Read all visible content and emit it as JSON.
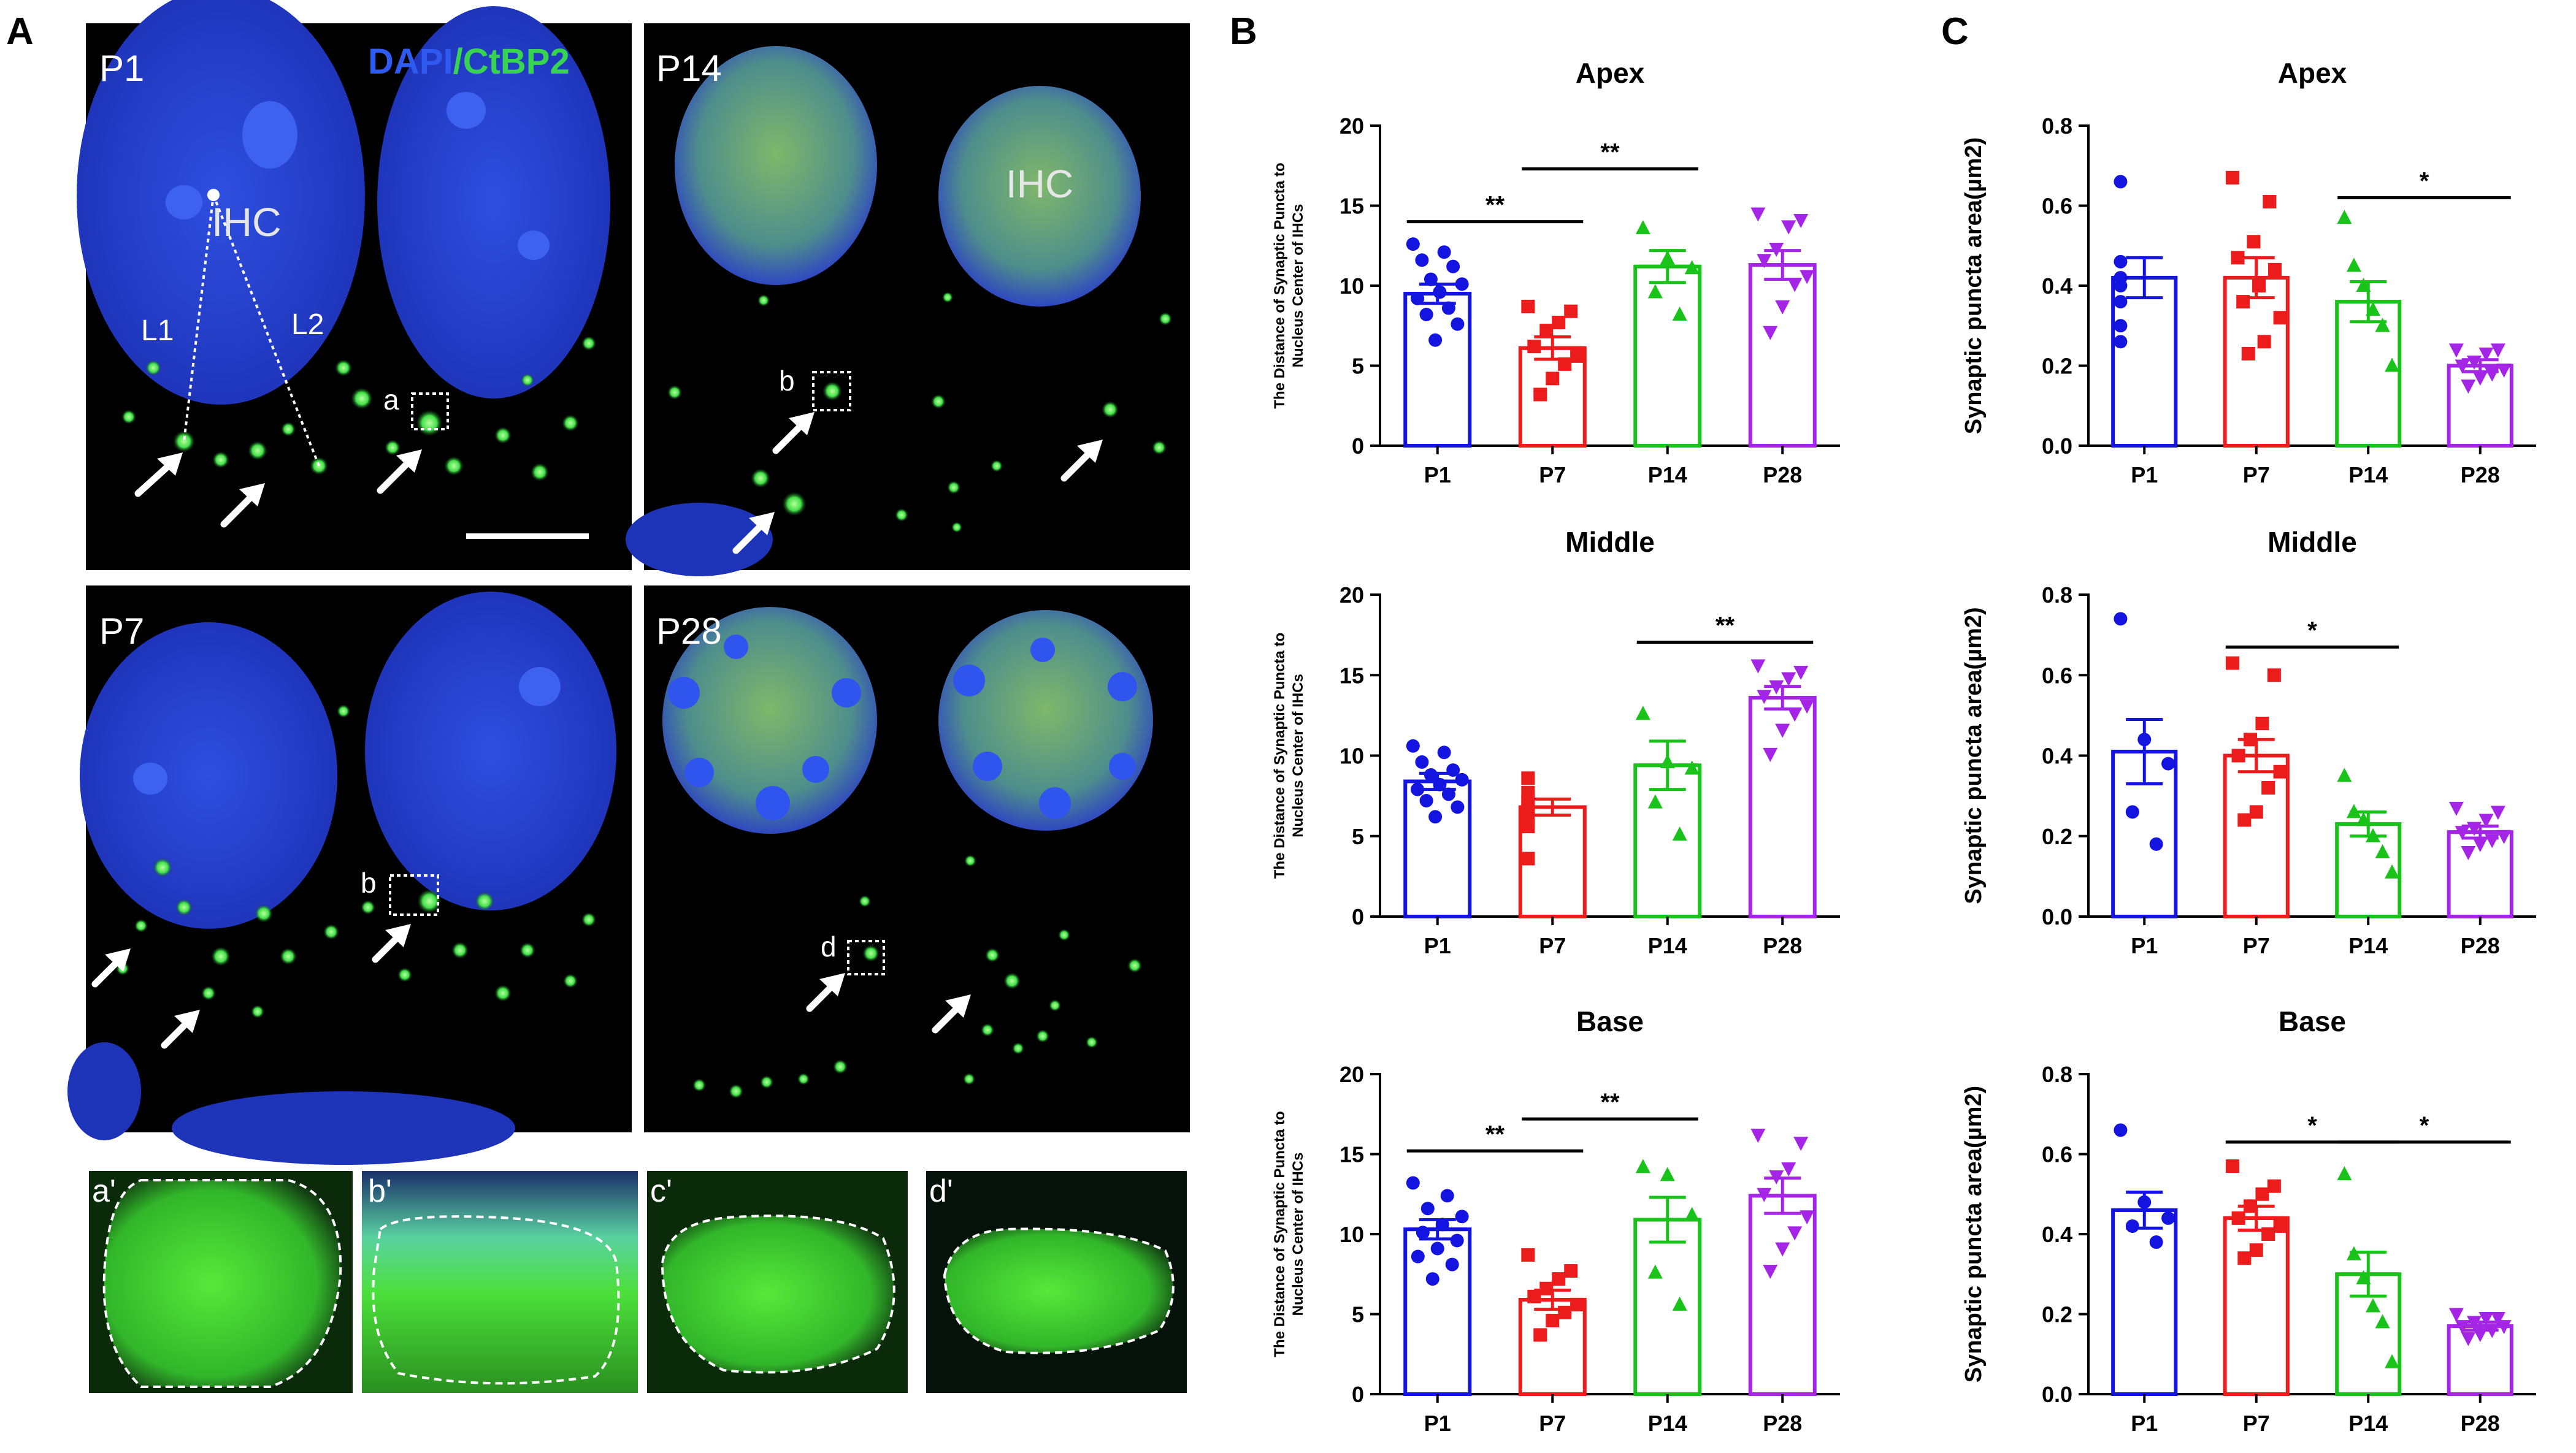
{
  "panel_letters": {
    "A": "A",
    "B": "B",
    "C": "C"
  },
  "micrographs": {
    "channels": {
      "dapi": "DAPI",
      "sep": "/",
      "ctbp2": "CtBP2"
    },
    "tiles": [
      {
        "label": "P1",
        "ihc_label": "IHC",
        "line_labels": [
          "L1",
          "L2"
        ],
        "box_label": "a",
        "scale_bar": true
      },
      {
        "label": "P14",
        "ihc_label": "IHC",
        "box_label": "b"
      },
      {
        "label": "P7",
        "box_label": "b"
      },
      {
        "label": "P28",
        "box_label": "d"
      }
    ],
    "insets": [
      "a'",
      "b'",
      "c'",
      "d'"
    ],
    "colors": {
      "dapi": "#2a4bd7",
      "ctbp2": "#39d353",
      "background": "#000000"
    }
  },
  "colors": {
    "P1": "#1414e0",
    "P7": "#ec1c1c",
    "P14": "#19c319",
    "P28": "#a425e6"
  },
  "chart_data": [
    {
      "type": "bar",
      "panel": "B",
      "title": "Apex",
      "ylabel": "The Distance of Synaptic Puncta to Nucleus Center of IHCs",
      "categories": [
        "P1",
        "P7",
        "P14",
        "P28"
      ],
      "ylim": [
        0,
        20
      ],
      "yticks": [
        "0",
        "5",
        "10",
        "15",
        "20"
      ],
      "values": [
        9.5,
        6.1,
        11.2,
        11.3
      ],
      "errors": [
        0.6,
        0.7,
        1.0,
        0.9
      ],
      "points": [
        [
          12.6,
          12.1,
          11.6,
          11.2,
          10.4,
          10.1,
          9.6,
          9.2,
          8.6,
          8.2,
          7.6,
          6.6
        ],
        [
          8.7,
          8.4,
          7.7,
          7.2,
          6.2,
          5.6,
          5.1,
          4.2,
          3.2
        ],
        [
          13.6,
          11.7,
          11.1,
          9.6,
          8.2
        ],
        [
          14.5,
          14.1,
          13.7,
          12.3,
          11.6,
          10.6,
          10.1,
          8.7,
          7.1
        ]
      ],
      "markers": [
        "circle",
        "square",
        "triangle",
        "triangle-down"
      ],
      "significance": [
        {
          "from": "P1",
          "to": "P7",
          "label": "**"
        },
        {
          "from": "P7",
          "to": "P14",
          "label": "**"
        }
      ]
    },
    {
      "type": "bar",
      "panel": "B",
      "title": "Middle",
      "ylabel": "The Distance of Synaptic Puncta to Nucleus Center of IHCs",
      "categories": [
        "P1",
        "P7",
        "P14",
        "P28"
      ],
      "ylim": [
        0,
        20
      ],
      "yticks": [
        "0",
        "5",
        "10",
        "15",
        "20"
      ],
      "values": [
        8.4,
        6.8,
        9.4,
        13.6
      ],
      "errors": [
        0.5,
        0.5,
        1.5,
        0.7
      ],
      "points": [
        [
          10.6,
          10.2,
          9.6,
          9.1,
          8.8,
          8.5,
          8.2,
          7.9,
          7.6,
          7.2,
          6.8,
          6.2
        ],
        [
          8.6,
          7.7,
          7.1,
          6.8,
          6.3,
          5.6,
          3.6
        ],
        [
          12.6,
          9.6,
          9.2,
          7.1,
          5.1
        ],
        [
          15.6,
          15.2,
          14.8,
          14.3,
          13.7,
          13.1,
          12.6,
          11.6,
          10.1
        ]
      ],
      "markers": [
        "circle",
        "square",
        "triangle",
        "triangle-down"
      ],
      "significance": [
        {
          "from": "P14",
          "to": "P28",
          "label": "**"
        }
      ]
    },
    {
      "type": "bar",
      "panel": "B",
      "title": "Base",
      "ylabel": "The Distance of Synaptic Puncta to Nucleus Center of IHCs",
      "categories": [
        "P1",
        "P7",
        "P14",
        "P28"
      ],
      "ylim": [
        0,
        20
      ],
      "yticks": [
        "0",
        "5",
        "10",
        "15",
        "20"
      ],
      "values": [
        10.3,
        5.9,
        10.9,
        12.4
      ],
      "errors": [
        0.6,
        0.6,
        1.4,
        1.1
      ],
      "points": [
        [
          13.2,
          12.4,
          11.6,
          11.1,
          10.6,
          10.1,
          9.6,
          9.1,
          8.6,
          8.1,
          7.2
        ],
        [
          8.7,
          7.7,
          7.2,
          6.6,
          6.1,
          5.6,
          5.1,
          4.6,
          3.7
        ],
        [
          14.2,
          13.7,
          11.2,
          7.6,
          5.6
        ],
        [
          16.2,
          15.7,
          14.1,
          13.6,
          12.5,
          11.1,
          10.1,
          9.1,
          7.7
        ]
      ],
      "markers": [
        "circle",
        "square",
        "triangle",
        "triangle-down"
      ],
      "significance": [
        {
          "from": "P1",
          "to": "P7",
          "label": "**"
        },
        {
          "from": "P7",
          "to": "P14",
          "label": "**"
        }
      ]
    },
    {
      "type": "bar",
      "panel": "C",
      "title": "Apex",
      "ylabel": "Synaptic puncta area(µm2)",
      "categories": [
        "P1",
        "P7",
        "P14",
        "P28"
      ],
      "ylim": [
        0,
        0.8
      ],
      "yticks": [
        "0.0",
        "0.2",
        "0.4",
        "0.6",
        "0.8"
      ],
      "values": [
        0.42,
        0.42,
        0.36,
        0.2
      ],
      "errors": [
        0.05,
        0.05,
        0.05,
        0.015
      ],
      "points": [
        [
          0.66,
          0.46,
          0.42,
          0.4,
          0.36,
          0.3,
          0.26
        ],
        [
          0.67,
          0.61,
          0.51,
          0.47,
          0.44,
          0.4,
          0.36,
          0.32,
          0.26,
          0.23
        ],
        [
          0.57,
          0.45,
          0.4,
          0.34,
          0.3,
          0.2
        ],
        [
          0.24,
          0.24,
          0.23,
          0.21,
          0.2,
          0.19,
          0.18,
          0.17,
          0.15
        ]
      ],
      "markers": [
        "circle",
        "square",
        "triangle",
        "triangle-down"
      ],
      "significance": [
        {
          "from": "P14",
          "to": "P28",
          "label": "*"
        }
      ]
    },
    {
      "type": "bar",
      "panel": "C",
      "title": "Middle",
      "ylabel": "Synaptic puncta area(µm2)",
      "categories": [
        "P1",
        "P7",
        "P14",
        "P28"
      ],
      "ylim": [
        0,
        0.8
      ],
      "yticks": [
        "0.0",
        "0.2",
        "0.4",
        "0.6",
        "0.8"
      ],
      "values": [
        0.41,
        0.4,
        0.23,
        0.21
      ],
      "errors": [
        0.08,
        0.04,
        0.03,
        0.015
      ],
      "points": [
        [
          0.74,
          0.44,
          0.38,
          0.26,
          0.18
        ],
        [
          0.63,
          0.6,
          0.48,
          0.44,
          0.4,
          0.36,
          0.32,
          0.26,
          0.24
        ],
        [
          0.35,
          0.26,
          0.24,
          0.2,
          0.16,
          0.11
        ],
        [
          0.27,
          0.26,
          0.24,
          0.22,
          0.21,
          0.2,
          0.19,
          0.18,
          0.16
        ]
      ],
      "markers": [
        "circle",
        "square",
        "triangle",
        "triangle-down"
      ],
      "significance": [
        {
          "from": "P7",
          "to": "P14",
          "label": "*"
        }
      ]
    },
    {
      "type": "bar",
      "panel": "C",
      "title": "Base",
      "ylabel": "Synaptic puncta area(µm2)",
      "categories": [
        "P1",
        "P7",
        "P14",
        "P28"
      ],
      "ylim": [
        0,
        0.8
      ],
      "yticks": [
        "0.0",
        "0.2",
        "0.4",
        "0.6",
        "0.8"
      ],
      "values": [
        0.46,
        0.44,
        0.3,
        0.17
      ],
      "errors": [
        0.045,
        0.03,
        0.055,
        0.01
      ],
      "points": [
        [
          0.66,
          0.48,
          0.44,
          0.42,
          0.38
        ],
        [
          0.57,
          0.52,
          0.5,
          0.47,
          0.44,
          0.42,
          0.4,
          0.36,
          0.34
        ],
        [
          0.55,
          0.35,
          0.29,
          0.22,
          0.18,
          0.08
        ],
        [
          0.2,
          0.19,
          0.19,
          0.18,
          0.17,
          0.17,
          0.16,
          0.15,
          0.14
        ]
      ],
      "markers": [
        "circle",
        "square",
        "triangle",
        "triangle-down"
      ],
      "significance": [
        {
          "from": "P7",
          "to": "P14",
          "label": "*"
        },
        {
          "from": "P14",
          "to": "P28",
          "label": "*"
        }
      ]
    }
  ]
}
